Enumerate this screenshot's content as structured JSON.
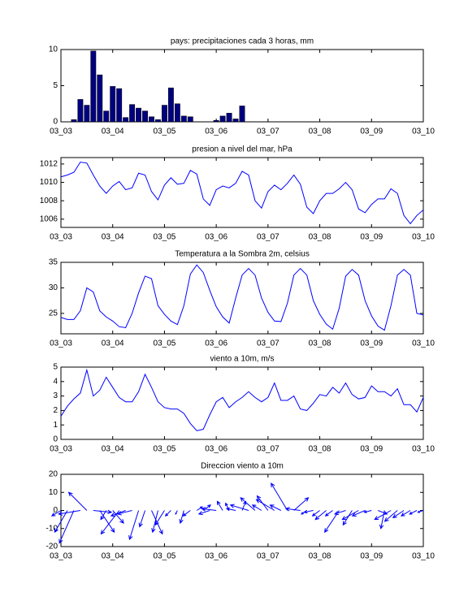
{
  "chart_data": [
    {
      "type": "bar",
      "title": "pays: precipitaciones cada 3 horas, mm",
      "color": "#000080",
      "x": [
        0,
        1,
        2,
        3,
        4,
        5,
        6,
        7,
        8,
        9,
        10,
        11,
        12,
        13,
        14,
        15,
        16,
        17,
        18,
        19,
        20,
        21,
        22,
        23,
        24,
        25,
        26,
        27,
        28,
        29,
        30,
        31,
        32,
        33,
        34,
        35,
        36,
        37,
        38,
        39,
        40,
        41,
        42,
        43,
        44,
        45,
        46,
        47,
        48,
        49,
        50,
        51,
        52,
        53,
        54,
        55,
        56
      ],
      "values": [
        0,
        0,
        0.3,
        3.1,
        2.3,
        9.8,
        6.5,
        1.5,
        4.9,
        4.6,
        0.6,
        2.4,
        1.9,
        1.5,
        0.7,
        0.3,
        2.3,
        4.7,
        2.5,
        0.8,
        0.7,
        0,
        0,
        0,
        0.2,
        0.8,
        1.2,
        0.4,
        2.2,
        0,
        0,
        0,
        0,
        0,
        0,
        0,
        0,
        0,
        0,
        0,
        0,
        0,
        0,
        0,
        0,
        0,
        0,
        0,
        0,
        0,
        0,
        0,
        0,
        0,
        0,
        0,
        0
      ],
      "xlim": [
        0,
        56
      ],
      "ylim": [
        0,
        10
      ],
      "yticks": [
        0,
        5,
        10
      ],
      "xticks": [
        {
          "value": 0,
          "label": "03_03"
        },
        {
          "value": 8,
          "label": "03_04"
        },
        {
          "value": 16,
          "label": "03_05"
        },
        {
          "value": 24,
          "label": "03_06"
        },
        {
          "value": 32,
          "label": "03_07"
        },
        {
          "value": 40,
          "label": "03_08"
        },
        {
          "value": 48,
          "label": "03_09"
        },
        {
          "value": 56,
          "label": "03_10"
        }
      ]
    },
    {
      "type": "line",
      "title": "presion a nivel del mar, hPa",
      "color": "#0000ff",
      "x": [
        0,
        1,
        2,
        3,
        4,
        5,
        6,
        7,
        8,
        9,
        10,
        11,
        12,
        13,
        14,
        15,
        16,
        17,
        18,
        19,
        20,
        21,
        22,
        23,
        24,
        25,
        26,
        27,
        28,
        29,
        30,
        31,
        32,
        33,
        34,
        35,
        36,
        37,
        38,
        39,
        40,
        41,
        42,
        43,
        44,
        45,
        46,
        47,
        48,
        49,
        50,
        51,
        52,
        53,
        54,
        55,
        56
      ],
      "values": [
        1010.6,
        1010.8,
        1011.1,
        1012.2,
        1012.1,
        1010.8,
        1009.6,
        1008.8,
        1009.6,
        1010.1,
        1009.2,
        1009.4,
        1011.0,
        1010.8,
        1009.0,
        1008.1,
        1009.7,
        1010.5,
        1009.8,
        1009.9,
        1011.3,
        1010.9,
        1008.2,
        1007.5,
        1009.2,
        1009.6,
        1009.4,
        1009.9,
        1011.2,
        1010.8,
        1008.0,
        1007.2,
        1009.0,
        1009.7,
        1009.2,
        1009.9,
        1010.8,
        1009.8,
        1007.3,
        1006.6,
        1008.0,
        1008.8,
        1008.8,
        1009.3,
        1010.0,
        1009.2,
        1007.1,
        1006.7,
        1007.6,
        1008.2,
        1008.2,
        1009.3,
        1008.8,
        1006.4,
        1005.5,
        1006.4,
        1007.0
      ],
      "xlim": [
        0,
        56
      ],
      "ylim": [
        1005.1,
        1012.7
      ],
      "yticks": [
        1006,
        1008,
        1010,
        1012
      ],
      "xticks": [
        {
          "value": 0,
          "label": "03_03"
        },
        {
          "value": 8,
          "label": "03_04"
        },
        {
          "value": 16,
          "label": "03_05"
        },
        {
          "value": 24,
          "label": "03_06"
        },
        {
          "value": 32,
          "label": "03_07"
        },
        {
          "value": 40,
          "label": "03_08"
        },
        {
          "value": 48,
          "label": "03_09"
        },
        {
          "value": 56,
          "label": "03_10"
        }
      ]
    },
    {
      "type": "line",
      "title": "Temperatura a la Sombra 2m, celsius",
      "color": "#0000ff",
      "x": [
        0,
        1,
        2,
        3,
        4,
        5,
        6,
        7,
        8,
        9,
        10,
        11,
        12,
        13,
        14,
        15,
        16,
        17,
        18,
        19,
        20,
        21,
        22,
        23,
        24,
        25,
        26,
        27,
        28,
        29,
        30,
        31,
        32,
        33,
        34,
        35,
        36,
        37,
        38,
        39,
        40,
        41,
        42,
        43,
        44,
        45,
        46,
        47,
        48,
        49,
        50,
        51,
        52,
        53,
        54,
        55,
        56
      ],
      "values": [
        24.2,
        23.8,
        23.8,
        25.5,
        30,
        29.2,
        25.5,
        24.3,
        23.5,
        22.4,
        22.2,
        25,
        29,
        32.3,
        31.8,
        26.5,
        24.8,
        23.5,
        22.8,
        26.5,
        32.7,
        34.5,
        33,
        29.5,
        26.3,
        24.3,
        23.1,
        28,
        32.5,
        33.8,
        32.5,
        28,
        25.2,
        23.5,
        23.4,
        27,
        32.5,
        33.8,
        32.5,
        27.5,
        24.8,
        22.9,
        21.9,
        26,
        32.3,
        33.6,
        32.5,
        27.5,
        24.5,
        22.5,
        21.7,
        26.5,
        32.5,
        33.6,
        32.5,
        25,
        24.7
      ],
      "xlim": [
        0,
        56
      ],
      "ylim": [
        21,
        35
      ],
      "yticks": [
        25,
        30,
        35
      ],
      "xticks": [
        {
          "value": 0,
          "label": "03_03"
        },
        {
          "value": 8,
          "label": "03_04"
        },
        {
          "value": 16,
          "label": "03_05"
        },
        {
          "value": 24,
          "label": "03_06"
        },
        {
          "value": 32,
          "label": "03_07"
        },
        {
          "value": 40,
          "label": "03_08"
        },
        {
          "value": 48,
          "label": "03_09"
        },
        {
          "value": 56,
          "label": "03_10"
        }
      ]
    },
    {
      "type": "line",
      "title": "viento a 10m, m/s",
      "color": "#0000ff",
      "x": [
        0,
        1,
        2,
        3,
        4,
        5,
        6,
        7,
        8,
        9,
        10,
        11,
        12,
        13,
        14,
        15,
        16,
        17,
        18,
        19,
        20,
        21,
        22,
        23,
        24,
        25,
        26,
        27,
        28,
        29,
        30,
        31,
        32,
        33,
        34,
        35,
        36,
        37,
        38,
        39,
        40,
        41,
        42,
        43,
        44,
        45,
        46,
        47,
        48,
        49,
        50,
        51,
        52,
        53,
        54,
        55,
        56
      ],
      "values": [
        1.6,
        2.3,
        2.8,
        3.2,
        4.8,
        3.0,
        3.4,
        4.3,
        3.6,
        2.9,
        2.6,
        2.6,
        3.3,
        4.5,
        3.6,
        2.6,
        2.2,
        2.1,
        2.1,
        1.8,
        1.1,
        0.6,
        0.7,
        1.7,
        2.6,
        2.9,
        2.2,
        2.6,
        2.9,
        3.3,
        2.9,
        2.6,
        2.9,
        3.9,
        2.7,
        2.7,
        3.0,
        2.1,
        2.0,
        2.5,
        3.1,
        3.0,
        3.6,
        3.2,
        3.9,
        3.1,
        2.8,
        2.9,
        3.7,
        3.3,
        3.3,
        3.0,
        3.5,
        2.4,
        2.4,
        1.9,
        2.9
      ],
      "xlim": [
        0,
        56
      ],
      "ylim": [
        0,
        5
      ],
      "yticks": [
        0,
        1,
        2,
        3,
        4,
        5
      ],
      "xticks": [
        {
          "value": 0,
          "label": "03_03"
        },
        {
          "value": 8,
          "label": "03_04"
        },
        {
          "value": 16,
          "label": "03_05"
        },
        {
          "value": 24,
          "label": "03_06"
        },
        {
          "value": 32,
          "label": "03_07"
        },
        {
          "value": 40,
          "label": "03_08"
        },
        {
          "value": 48,
          "label": "03_09"
        },
        {
          "value": 56,
          "label": "03_10"
        }
      ]
    },
    {
      "type": "quiver",
      "title": "Direccion viento a 10m",
      "color": "#0000ff",
      "x": [
        0,
        1,
        2,
        3,
        4,
        5,
        6,
        7,
        8,
        9,
        10,
        11,
        12,
        13,
        14,
        15,
        16,
        17,
        18,
        19,
        20,
        21,
        22,
        23,
        24,
        25,
        26,
        27,
        28,
        29,
        30,
        31,
        32,
        33,
        34,
        35,
        36,
        37,
        38,
        39,
        40,
        41,
        42,
        43,
        44,
        45,
        46,
        47,
        48,
        49,
        50,
        51,
        52,
        53,
        54,
        55,
        56
      ],
      "u": [
        -5,
        -7,
        -8,
        -12,
        -10,
        10,
        8,
        -3,
        6,
        -10,
        -8,
        -8,
        -5,
        -3,
        6,
        -3,
        -5,
        -3,
        -1,
        -2,
        -4,
        3,
        4,
        -6,
        -8,
        -3,
        -2,
        -5,
        2,
        -10,
        -8,
        -5,
        -6,
        -10,
        -6,
        -9,
        8,
        -8,
        -3,
        -5,
        -4,
        -6,
        -4,
        -8,
        -6,
        -5,
        -9,
        -7,
        -4,
        5,
        -2,
        -9,
        -7,
        -6,
        -5,
        -4,
        -3
      ],
      "v": [
        -3,
        -12,
        -18,
        -2,
        10,
        -1,
        -12,
        -5,
        -7,
        -13,
        -3,
        -2,
        -16,
        -9,
        -13,
        -12,
        -8,
        -3,
        -2,
        -7,
        -3,
        2,
        3,
        -2,
        1,
        5,
        4,
        1,
        5,
        3,
        7,
        3,
        8,
        6,
        3,
        15,
        7,
        1,
        -2,
        -1,
        -3,
        -5,
        -3,
        -12,
        -2,
        -8,
        -5,
        -3,
        -1,
        -2,
        -10,
        -5,
        -6,
        -4,
        -3,
        -2,
        -1
      ],
      "xlim": [
        0,
        56
      ],
      "ylim": [
        -20,
        20
      ],
      "yticks": [
        -20,
        -10,
        0,
        10,
        20
      ],
      "xticks": [
        {
          "value": 0,
          "label": "03_03"
        },
        {
          "value": 8,
          "label": "03_04"
        },
        {
          "value": 16,
          "label": "03_05"
        },
        {
          "value": 24,
          "label": "03_06"
        },
        {
          "value": 32,
          "label": "03_07"
        },
        {
          "value": 40,
          "label": "03_08"
        },
        {
          "value": 48,
          "label": "03_09"
        },
        {
          "value": 56,
          "label": "03_10"
        }
      ]
    }
  ]
}
